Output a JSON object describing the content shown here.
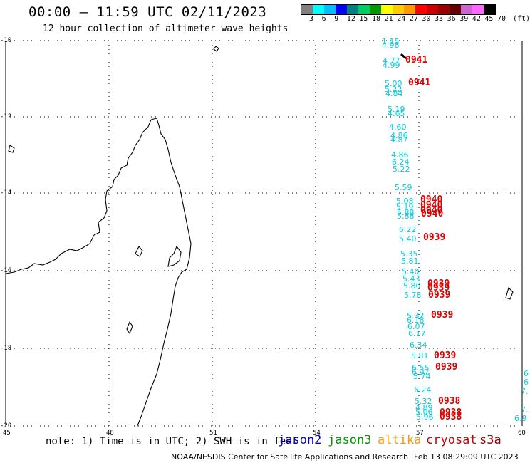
{
  "header": {
    "title": "00:00 – 11:59 UTC 02/11/2023",
    "subtitle": "12 hour collection of altimeter wave heights"
  },
  "legend": {
    "colors": [
      "#808080",
      "#00ffff",
      "#00bfff",
      "#0000ff",
      "#008080",
      "#00cc66",
      "#009900",
      "#ffff00",
      "#ffcc00",
      "#ff9900",
      "#ff0000",
      "#cc0000",
      "#990000",
      "#660000",
      "#cc66cc",
      "#ff66ff",
      "#000000"
    ],
    "ticks": [
      "3",
      "6",
      "9",
      "12",
      "15",
      "18",
      "21",
      "24",
      "27",
      "30",
      "33",
      "36",
      "39",
      "42",
      "45",
      "70"
    ],
    "unit": "(ft)"
  },
  "axes": {
    "lat_labels": [
      "-10",
      "-12",
      "-14",
      "-16",
      "-18",
      "-20"
    ],
    "lon_labels": [
      "45",
      "48",
      "51",
      "54",
      "57",
      "60"
    ]
  },
  "swh_values": [
    "1.15",
    "4.98",
    "4.77",
    "4.99",
    "5.00",
    "5.22",
    "4.84",
    "5.19",
    "4.65",
    "4.60",
    "4.86",
    "4.87",
    "4.86",
    "6.24",
    "5.22",
    "5.59",
    "5.08",
    "5.19",
    "5.88",
    "5.88",
    "6.22",
    "5.40",
    "5.35",
    "5.81",
    "5.40",
    "5.43",
    "5.80",
    "5.78",
    "5.32",
    "6.18",
    "6.07",
    "6.17",
    "6.34",
    "5.81",
    "6.55",
    "6.97",
    "5.74",
    "6.24",
    "5.32",
    "4.89",
    "5.06",
    "5.96",
    "6",
    "6",
    "7.",
    "7.",
    "6.9"
  ],
  "times": [
    "0941",
    "0941",
    "0940",
    "0940",
    "0940",
    "0940",
    "0939",
    "0939",
    "0939",
    "0939",
    "0939",
    "0939",
    "0939",
    "0938",
    "0938",
    "0938"
  ],
  "note": "note: 1) Time is in UTC; 2) SWH is in feet",
  "satellites": [
    {
      "name": "jason2",
      "color": "#0000cc"
    },
    {
      "name": "jason3",
      "color": "#009900"
    },
    {
      "name": "altika",
      "color": "#ff9900"
    },
    {
      "name": "cryosat",
      "color": "#cc0000"
    },
    {
      "name": "s3a",
      "color": "#990000"
    }
  ],
  "footer": {
    "left": "NOAA/NESDIS Center for Satellite Applications and Research",
    "right": "Feb 13 08:29:09 UTC 2023"
  }
}
